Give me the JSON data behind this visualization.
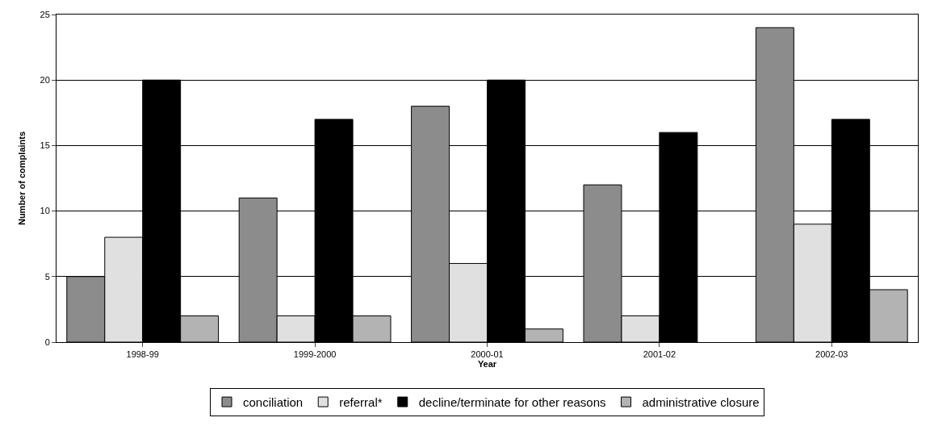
{
  "chart_data": {
    "type": "bar",
    "xlabel": "Year",
    "ylabel": "Number of complaints",
    "categories": [
      "1998-99",
      "1999-2000",
      "2000-01",
      "2001-02",
      "2002-03"
    ],
    "series": [
      {
        "name": "conciliation",
        "color": "#8c8c8c",
        "values": [
          5,
          11,
          18,
          12,
          24
        ]
      },
      {
        "name": "referral*",
        "color": "#e0e0e0",
        "values": [
          8,
          2,
          6,
          2,
          9
        ]
      },
      {
        "name": "decline/terminate for other reasons",
        "color": "#000000",
        "values": [
          20,
          17,
          20,
          16,
          17
        ]
      },
      {
        "name": "administrative closure",
        "color": "#b3b3b3",
        "values": [
          2,
          2,
          1,
          0,
          4
        ]
      }
    ],
    "ylim": [
      0,
      25
    ],
    "yticks": [
      0,
      5,
      10,
      15,
      20,
      25
    ],
    "grid": "y",
    "legend": "bottom"
  }
}
